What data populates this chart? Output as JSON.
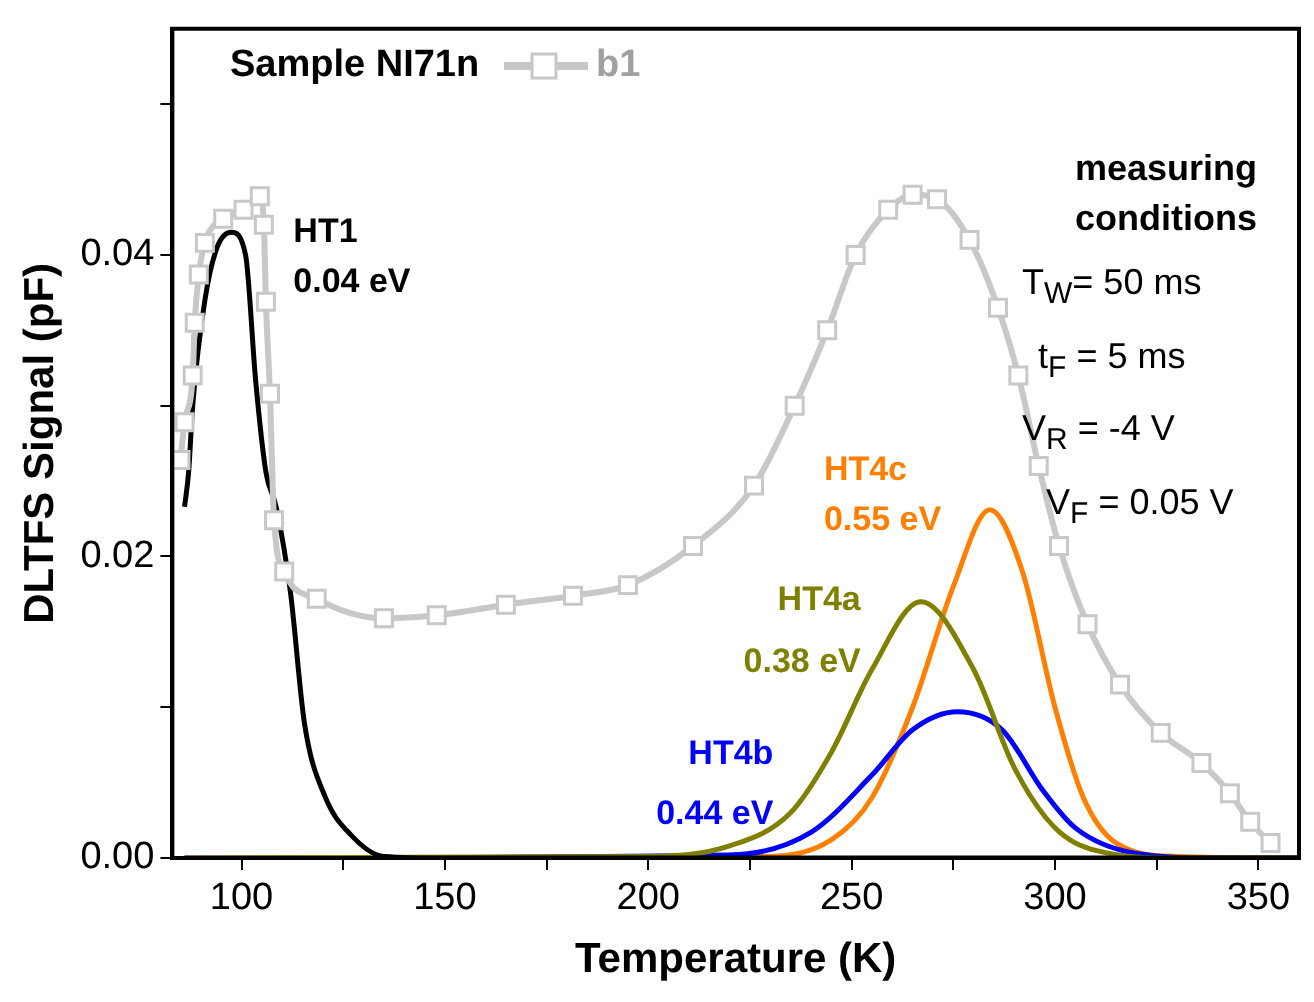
{
  "chart_data": {
    "type": "line",
    "title": "Sample NI71n",
    "xlabel": "Temperature (K)",
    "ylabel": "DLTFS Signal (pF)",
    "legend": "top left",
    "grid": false,
    "xlim": [
      83,
      360
    ],
    "ylim": [
      0,
      0.055
    ],
    "xticks": [
      100,
      {
        "value": 125,
        "label": null
      },
      150,
      {
        "value": 175,
        "label": null
      },
      200,
      {
        "value": 225,
        "label": null
      },
      250,
      {
        "value": 275,
        "label": null
      },
      300,
      {
        "value": 325,
        "label": null
      },
      350
    ],
    "yticks": [
      {
        "value": 0,
        "label": "0.00"
      },
      {
        "value": 0.01,
        "label": null
      },
      {
        "value": 0.02,
        "label": "0.02"
      },
      {
        "value": 0.03,
        "label": null
      },
      {
        "value": 0.04,
        "label": "0.04"
      },
      {
        "value": 0.05,
        "label": null
      }
    ],
    "annotations": [
      "measuring conditions",
      "T$_{W}$= 50 ms",
      "t$_{F}$ = 5 ms",
      "V$_{R}$ = -4 V",
      "V$_{F}$ = 0.05 V"
    ],
    "series": [
      {
        "name": "b1",
        "color": "#c8c8c8",
        "marker": "square",
        "x": [
          85,
          86,
          88,
          88.5,
          89.5,
          91,
          95.5,
          100.5,
          104.5,
          105.5,
          106,
          107,
          108,
          110.5,
          118.5,
          135,
          148,
          165,
          181.5,
          195,
          211,
          226,
          236,
          244,
          251,
          259,
          265,
          271,
          279,
          286,
          291,
          296,
          301,
          308,
          316,
          326,
          336,
          343,
          348,
          353
        ],
        "values": [
          0.0264,
          0.0289,
          0.032,
          0.0355,
          0.0387,
          0.0408,
          0.0424,
          0.043,
          0.0439,
          0.042,
          0.0369,
          0.0308,
          0.0224,
          0.019,
          0.0172,
          0.0159,
          0.0161,
          0.0168,
          0.0174,
          0.0181,
          0.0207,
          0.0247,
          0.03,
          0.035,
          0.04,
          0.043,
          0.044,
          0.0437,
          0.041,
          0.0365,
          0.032,
          0.026,
          0.0207,
          0.0155,
          0.0115,
          0.0083,
          0.0063,
          0.0043,
          0.0024,
          0.001
        ]
      },
      {
        "name": "HT1 0.04 eV",
        "color": "#000000",
        "marker": "none",
        "x": [
          86,
          87,
          88,
          91,
          94,
          97.5,
          101,
          103.5,
          106,
          108.5,
          112,
          115.5,
          120.5,
          127,
          135,
          150,
          200,
          360
        ],
        "values": [
          0.0233,
          0.0256,
          0.03,
          0.037,
          0.0405,
          0.0415,
          0.04,
          0.0316,
          0.0256,
          0.0233,
          0.0177,
          0.0089,
          0.0041,
          0.0015,
          0.0001,
          0,
          0,
          0
        ]
      },
      {
        "name": "HT4a 0.38 eV",
        "color": "#808000",
        "marker": "none",
        "x": [
          86,
          200,
          220,
          235,
          245,
          255,
          267,
          280,
          290,
          300,
          310,
          330,
          360
        ],
        "values": [
          0,
          0.0001,
          0.0008,
          0.003,
          0.007,
          0.0125,
          0.017,
          0.0125,
          0.006,
          0.002,
          0.0005,
          0,
          0
        ]
      },
      {
        "name": "HT4b 0.44 eV",
        "color": "#0000ff",
        "marker": "none",
        "x": [
          86,
          220,
          240,
          255,
          265,
          276,
          287,
          297,
          305,
          320,
          340,
          360
        ],
        "values": [
          0,
          0.0002,
          0.0017,
          0.0055,
          0.0085,
          0.0097,
          0.0085,
          0.0045,
          0.002,
          0.0003,
          0,
          0
        ]
      },
      {
        "name": "HT4c 0.55 eV",
        "color": "#ff8000",
        "marker": "none",
        "x": [
          86,
          230,
          245,
          255,
          265,
          275,
          284,
          292,
          300,
          307,
          315,
          330,
          360
        ],
        "values": [
          0,
          0.0001,
          0.0012,
          0.004,
          0.01,
          0.018,
          0.0231,
          0.019,
          0.01,
          0.004,
          0.001,
          0.0001,
          0
        ]
      }
    ]
  }
}
